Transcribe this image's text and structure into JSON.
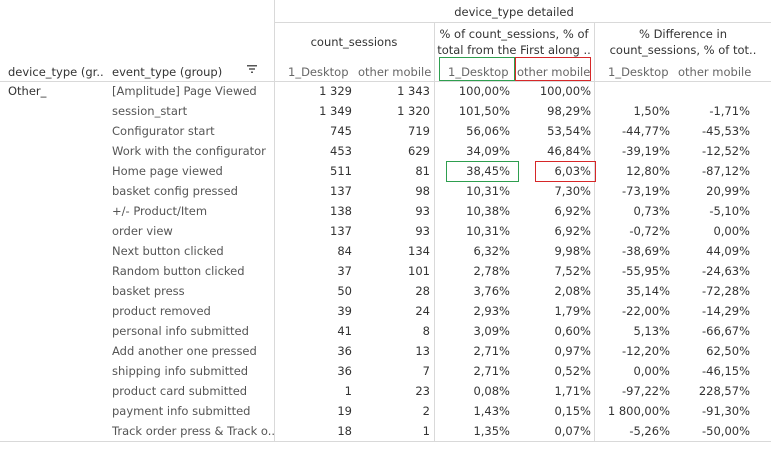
{
  "colors": {
    "highlight_green": "#2e9e4f",
    "highlight_red": "#d62728",
    "divider": "#d9d9d9"
  },
  "header": {
    "top_group": "device_type detailed",
    "count_sessions": "count_sessions",
    "pct_of_total": "% of count_sessions, % of total from the First along ..",
    "pct_difference": "% Difference in count_sessions, % of tot..",
    "device_type_col": "device_type (gr..",
    "event_type_col": "event_type (group)",
    "sort_icon": "sort-icon",
    "desktop": "1_Desktop",
    "other_mobile": "other mobile"
  },
  "device_type_value": "Other_",
  "rows": [
    {
      "event": "[Amplitude] Page Viewed",
      "c_desktop": "1 329",
      "c_mobile": "1 343",
      "p_desktop": "100,00%",
      "p_mobile": "100,00%",
      "d_desktop": "",
      "d_mobile": ""
    },
    {
      "event": "session_start",
      "c_desktop": "1 349",
      "c_mobile": "1 320",
      "p_desktop": "101,50%",
      "p_mobile": "98,29%",
      "d_desktop": "1,50%",
      "d_mobile": "-1,71%"
    },
    {
      "event": "Configurator start",
      "c_desktop": "745",
      "c_mobile": "719",
      "p_desktop": "56,06%",
      "p_mobile": "53,54%",
      "d_desktop": "-44,77%",
      "d_mobile": "-45,53%"
    },
    {
      "event": "Work with the configurator",
      "c_desktop": "453",
      "c_mobile": "629",
      "p_desktop": "34,09%",
      "p_mobile": "46,84%",
      "d_desktop": "-39,19%",
      "d_mobile": "-12,52%"
    },
    {
      "event": "Home page viewed",
      "c_desktop": "511",
      "c_mobile": "81",
      "p_desktop": "38,45%",
      "p_mobile": "6,03%",
      "d_desktop": "12,80%",
      "d_mobile": "-87,12%"
    },
    {
      "event": "basket config pressed",
      "c_desktop": "137",
      "c_mobile": "98",
      "p_desktop": "10,31%",
      "p_mobile": "7,30%",
      "d_desktop": "-73,19%",
      "d_mobile": "20,99%"
    },
    {
      "event": "+/- Product/Item",
      "c_desktop": "138",
      "c_mobile": "93",
      "p_desktop": "10,38%",
      "p_mobile": "6,92%",
      "d_desktop": "0,73%",
      "d_mobile": "-5,10%"
    },
    {
      "event": "order view",
      "c_desktop": "137",
      "c_mobile": "93",
      "p_desktop": "10,31%",
      "p_mobile": "6,92%",
      "d_desktop": "-0,72%",
      "d_mobile": "0,00%"
    },
    {
      "event": "Next button clicked",
      "c_desktop": "84",
      "c_mobile": "134",
      "p_desktop": "6,32%",
      "p_mobile": "9,98%",
      "d_desktop": "-38,69%",
      "d_mobile": "44,09%"
    },
    {
      "event": "Random button clicked",
      "c_desktop": "37",
      "c_mobile": "101",
      "p_desktop": "2,78%",
      "p_mobile": "7,52%",
      "d_desktop": "-55,95%",
      "d_mobile": "-24,63%"
    },
    {
      "event": "basket press",
      "c_desktop": "50",
      "c_mobile": "28",
      "p_desktop": "3,76%",
      "p_mobile": "2,08%",
      "d_desktop": "35,14%",
      "d_mobile": "-72,28%"
    },
    {
      "event": "product removed",
      "c_desktop": "39",
      "c_mobile": "24",
      "p_desktop": "2,93%",
      "p_mobile": "1,79%",
      "d_desktop": "-22,00%",
      "d_mobile": "-14,29%"
    },
    {
      "event": "personal info submitted",
      "c_desktop": "41",
      "c_mobile": "8",
      "p_desktop": "3,09%",
      "p_mobile": "0,60%",
      "d_desktop": "5,13%",
      "d_mobile": "-66,67%"
    },
    {
      "event": "Add another one pressed",
      "c_desktop": "36",
      "c_mobile": "13",
      "p_desktop": "2,71%",
      "p_mobile": "0,97%",
      "d_desktop": "-12,20%",
      "d_mobile": "62,50%"
    },
    {
      "event": "shipping info submitted",
      "c_desktop": "36",
      "c_mobile": "7",
      "p_desktop": "2,71%",
      "p_mobile": "0,52%",
      "d_desktop": "0,00%",
      "d_mobile": "-46,15%"
    },
    {
      "event": "product card submitted",
      "c_desktop": "1",
      "c_mobile": "23",
      "p_desktop": "0,08%",
      "p_mobile": "1,71%",
      "d_desktop": "-97,22%",
      "d_mobile": "228,57%"
    },
    {
      "event": "payment info submitted",
      "c_desktop": "19",
      "c_mobile": "2",
      "p_desktop": "1,43%",
      "p_mobile": "0,15%",
      "d_desktop": "1 800,00%",
      "d_mobile": "-91,30%"
    },
    {
      "event": "Track order press & Track o..",
      "c_desktop": "18",
      "c_mobile": "1",
      "p_desktop": "1,35%",
      "p_mobile": "0,07%",
      "d_desktop": "-5,26%",
      "d_mobile": "-50,00%"
    }
  ]
}
